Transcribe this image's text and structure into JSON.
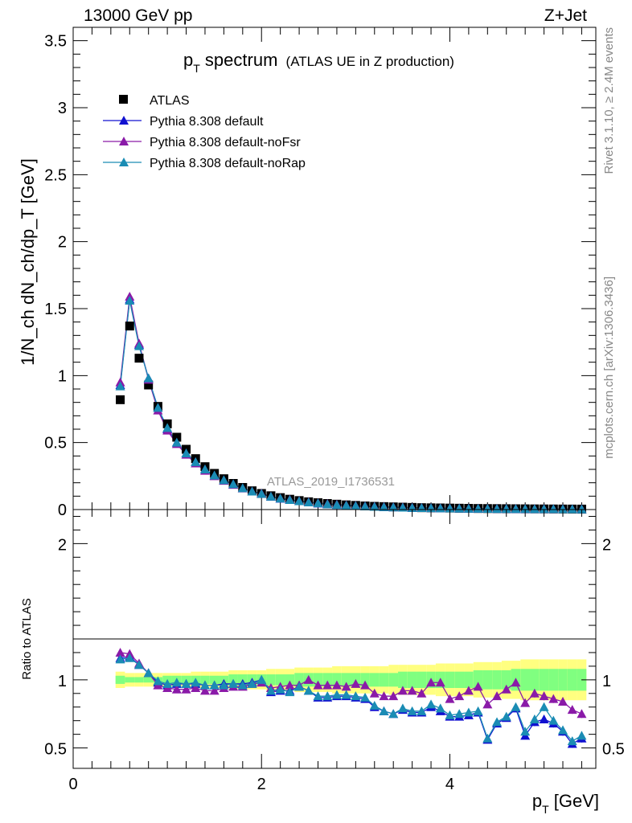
{
  "header": {
    "left": "13000 GeV pp",
    "right": "Z+Jet"
  },
  "side_labels": {
    "rivet": "Rivet 3.1.10, ≥ 2.4M events",
    "mcplots": "mcplots.cern.ch [arXiv:1306.3436]"
  },
  "watermark": "ATLAS_2019_I1736531",
  "colors": {
    "atlas": "#000000",
    "default": "#1010d0",
    "noFsr": "#8a1aa8",
    "noRap": "#1a8cb4",
    "band_outer": "#ffff80",
    "band_inner": "#80ff80"
  },
  "chart_data": [
    {
      "type": "scatter",
      "panel": "main",
      "title_main": "p",
      "title_sub": "T",
      "title_tail": " spectrum",
      "title_note": "(ATLAS UE in Z production)",
      "ylabel": "1/N_ch dN_ch/dp_T [GeV]",
      "ylim": [
        0,
        3.6
      ],
      "xlim": [
        0,
        5.55
      ],
      "yticks": [
        "0",
        "0.5",
        "1",
        "1.5",
        "2",
        "2.5",
        "3",
        "3.5"
      ],
      "legend_position": "top-left",
      "x": [
        0.5,
        0.6,
        0.7,
        0.8,
        0.9,
        1.0,
        1.1,
        1.2,
        1.3,
        1.4,
        1.5,
        1.6,
        1.7,
        1.8,
        1.9,
        2.0,
        2.1,
        2.2,
        2.3,
        2.4,
        2.5,
        2.6,
        2.7,
        2.8,
        2.9,
        3.0,
        3.1,
        3.2,
        3.3,
        3.4,
        3.5,
        3.6,
        3.7,
        3.8,
        3.9,
        4.0,
        4.1,
        4.2,
        4.3,
        4.4,
        4.5,
        4.6,
        4.7,
        4.8,
        4.9,
        5.0,
        5.1,
        5.2,
        5.3,
        5.4
      ],
      "series": [
        {
          "name": "ATLAS",
          "marker": "square",
          "values": [
            0.82,
            1.37,
            1.13,
            0.93,
            0.77,
            0.64,
            0.54,
            0.45,
            0.38,
            0.32,
            0.27,
            0.23,
            0.195,
            0.165,
            0.14,
            0.12,
            0.103,
            0.089,
            0.077,
            0.067,
            0.058,
            0.051,
            0.045,
            0.04,
            0.035,
            0.031,
            0.027,
            0.024,
            0.022,
            0.02,
            0.018,
            0.016,
            0.014,
            0.013,
            0.012,
            0.011,
            0.01,
            0.009,
            0.008,
            0.0075,
            0.007,
            0.0065,
            0.006,
            0.0055,
            0.005,
            0.0047,
            0.0044,
            0.0041,
            0.0038,
            0.0035
          ]
        },
        {
          "name": "Pythia 8.308 default",
          "marker": "triangle",
          "values": [
            0.93,
            1.57,
            1.23,
            0.98,
            0.76,
            0.6,
            0.5,
            0.42,
            0.355,
            0.3,
            0.255,
            0.22,
            0.19,
            0.16,
            0.135,
            0.118,
            0.096,
            0.082,
            0.072,
            0.063,
            0.054,
            0.046,
            0.04,
            0.035,
            0.031,
            0.027,
            0.024,
            0.021,
            0.019,
            0.017,
            0.015,
            0.013,
            0.012,
            0.011,
            0.01,
            0.009,
            0.008,
            0.007,
            0.0065,
            0.006,
            0.0055,
            0.005,
            0.0048,
            0.0042,
            0.004,
            0.0036,
            0.0034,
            0.003,
            0.0028,
            0.0025
          ]
        },
        {
          "name": "Pythia 8.308 default-noFsr",
          "marker": "triangle",
          "values": [
            0.95,
            1.59,
            1.24,
            0.97,
            0.74,
            0.59,
            0.49,
            0.41,
            0.345,
            0.29,
            0.25,
            0.215,
            0.185,
            0.158,
            0.135,
            0.12,
            0.097,
            0.084,
            0.074,
            0.064,
            0.056,
            0.049,
            0.043,
            0.038,
            0.033,
            0.029,
            0.026,
            0.023,
            0.021,
            0.019,
            0.017,
            0.015,
            0.013,
            0.012,
            0.011,
            0.01,
            0.009,
            0.008,
            0.0072,
            0.0068,
            0.0064,
            0.0058,
            0.0055,
            0.0048,
            0.0045,
            0.0042,
            0.0038,
            0.0035,
            0.0032,
            0.0028
          ]
        },
        {
          "name": "Pythia 8.308 default-noRap",
          "marker": "triangle",
          "values": [
            0.92,
            1.56,
            1.22,
            0.98,
            0.76,
            0.61,
            0.5,
            0.42,
            0.355,
            0.3,
            0.255,
            0.22,
            0.19,
            0.16,
            0.135,
            0.118,
            0.097,
            0.083,
            0.072,
            0.063,
            0.054,
            0.047,
            0.04,
            0.035,
            0.031,
            0.027,
            0.024,
            0.021,
            0.019,
            0.017,
            0.015,
            0.013,
            0.012,
            0.011,
            0.01,
            0.009,
            0.008,
            0.007,
            0.0065,
            0.006,
            0.0055,
            0.005,
            0.0048,
            0.0042,
            0.004,
            0.0036,
            0.0034,
            0.003,
            0.0028,
            0.0025
          ]
        }
      ]
    },
    {
      "type": "line",
      "panel": "ratio",
      "ylabel": "Ratio to ATLAS",
      "xlabel_main": "p",
      "xlabel_sub": "T",
      "xlabel_tail": " [GeV]",
      "ylim": [
        0.35,
        2.25
      ],
      "xlim": [
        0,
        5.55
      ],
      "yticks": [
        {
          "v": 0.5,
          "label": "0.5"
        },
        {
          "v": 1,
          "label": "1"
        },
        {
          "v": 2,
          "label": "2"
        }
      ],
      "xticks": [
        {
          "v": 0,
          "label": "0"
        },
        {
          "v": 2,
          "label": "2"
        },
        {
          "v": 4,
          "label": "4"
        }
      ],
      "x": [
        0.5,
        0.6,
        0.7,
        0.8,
        0.9,
        1.0,
        1.1,
        1.2,
        1.3,
        1.4,
        1.5,
        1.6,
        1.7,
        1.8,
        1.9,
        2.0,
        2.1,
        2.2,
        2.3,
        2.4,
        2.5,
        2.6,
        2.7,
        2.8,
        2.9,
        3.0,
        3.1,
        3.2,
        3.3,
        3.4,
        3.5,
        3.6,
        3.7,
        3.8,
        3.9,
        4.0,
        4.1,
        4.2,
        4.3,
        4.4,
        4.5,
        4.6,
        4.7,
        4.8,
        4.9,
        5.0,
        5.1,
        5.2,
        5.3,
        5.4
      ],
      "band_inner": [
        0.03,
        0.02,
        0.02,
        0.02,
        0.02,
        0.03,
        0.03,
        0.03,
        0.03,
        0.03,
        0.03,
        0.03,
        0.04,
        0.04,
        0.04,
        0.04,
        0.04,
        0.04,
        0.04,
        0.05,
        0.05,
        0.05,
        0.05,
        0.05,
        0.05,
        0.05,
        0.05,
        0.05,
        0.05,
        0.05,
        0.06,
        0.06,
        0.06,
        0.06,
        0.06,
        0.06,
        0.06,
        0.06,
        0.07,
        0.07,
        0.07,
        0.07,
        0.08,
        0.08,
        0.08,
        0.08,
        0.08,
        0.08,
        0.08,
        0.08
      ],
      "band_outer": [
        0.06,
        0.05,
        0.05,
        0.05,
        0.05,
        0.05,
        0.05,
        0.05,
        0.06,
        0.06,
        0.06,
        0.06,
        0.07,
        0.07,
        0.07,
        0.07,
        0.08,
        0.08,
        0.08,
        0.09,
        0.09,
        0.09,
        0.09,
        0.1,
        0.1,
        0.1,
        0.1,
        0.1,
        0.1,
        0.11,
        0.11,
        0.11,
        0.11,
        0.11,
        0.12,
        0.12,
        0.12,
        0.12,
        0.13,
        0.13,
        0.13,
        0.14,
        0.14,
        0.15,
        0.15,
        0.15,
        0.15,
        0.15,
        0.15,
        0.15
      ],
      "series": [
        {
          "name": "Pythia 8.308 default",
          "values": [
            1.16,
            1.17,
            1.11,
            1.05,
            0.98,
            0.96,
            0.97,
            0.97,
            0.97,
            0.96,
            0.96,
            0.97,
            0.97,
            0.97,
            0.98,
            1.0,
            0.91,
            0.92,
            0.92,
            0.95,
            0.92,
            0.87,
            0.87,
            0.88,
            0.88,
            0.87,
            0.86,
            0.8,
            0.77,
            0.75,
            0.78,
            0.76,
            0.76,
            0.8,
            0.77,
            0.73,
            0.73,
            0.74,
            0.76,
            0.56,
            0.68,
            0.72,
            0.79,
            0.59,
            0.69,
            0.71,
            0.68,
            0.62,
            0.53,
            0.57
          ],
          "errors": [
            0.01,
            0.01,
            0.01,
            0.01,
            0.01,
            0.01,
            0.01,
            0.01,
            0.01,
            0.01,
            0.01,
            0.01,
            0.01,
            0.01,
            0.01,
            0.01,
            0.01,
            0.01,
            0.01,
            0.01,
            0.01,
            0.01,
            0.01,
            0.01,
            0.01,
            0.01,
            0.01,
            0.015,
            0.015,
            0.015,
            0.015,
            0.015,
            0.015,
            0.015,
            0.02,
            0.02,
            0.02,
            0.02,
            0.02,
            0.02,
            0.025,
            0.025,
            0.025,
            0.025,
            0.03,
            0.03,
            0.03,
            0.03,
            0.03,
            0.03
          ]
        },
        {
          "name": "Pythia 8.308 default-noFsr",
          "values": [
            1.2,
            1.19,
            1.12,
            1.05,
            0.96,
            0.94,
            0.93,
            0.93,
            0.94,
            0.92,
            0.92,
            0.94,
            0.95,
            0.95,
            0.97,
            0.98,
            0.94,
            0.95,
            0.96,
            0.96,
            1.0,
            0.96,
            0.96,
            0.96,
            0.95,
            0.97,
            0.96,
            0.9,
            0.88,
            0.88,
            0.92,
            0.92,
            0.9,
            0.98,
            0.98,
            0.86,
            0.88,
            0.92,
            0.95,
            0.82,
            0.88,
            0.93,
            0.98,
            0.83,
            0.9,
            0.88,
            0.86,
            0.84,
            0.78,
            0.75
          ],
          "errors": [
            0.01,
            0.01,
            0.01,
            0.01,
            0.01,
            0.01,
            0.01,
            0.01,
            0.01,
            0.01,
            0.01,
            0.01,
            0.01,
            0.01,
            0.01,
            0.01,
            0.01,
            0.01,
            0.01,
            0.01,
            0.01,
            0.01,
            0.01,
            0.01,
            0.01,
            0.01,
            0.01,
            0.015,
            0.015,
            0.015,
            0.015,
            0.015,
            0.015,
            0.015,
            0.02,
            0.02,
            0.02,
            0.02,
            0.02,
            0.02,
            0.025,
            0.025,
            0.025,
            0.025,
            0.03,
            0.03,
            0.03,
            0.03,
            0.03,
            0.03
          ]
        },
        {
          "name": "Pythia 8.308 default-noRap",
          "values": [
            1.15,
            1.16,
            1.11,
            1.05,
            0.99,
            0.97,
            0.98,
            0.97,
            0.98,
            0.96,
            0.96,
            0.96,
            0.97,
            0.96,
            0.97,
            1.0,
            0.92,
            0.93,
            0.91,
            0.95,
            0.92,
            0.88,
            0.88,
            0.89,
            0.89,
            0.88,
            0.87,
            0.81,
            0.77,
            0.75,
            0.79,
            0.77,
            0.77,
            0.82,
            0.79,
            0.74,
            0.75,
            0.76,
            0.77,
            0.57,
            0.69,
            0.73,
            0.8,
            0.62,
            0.71,
            0.8,
            0.7,
            0.63,
            0.55,
            0.59
          ],
          "errors": [
            0.01,
            0.01,
            0.01,
            0.01,
            0.01,
            0.01,
            0.01,
            0.01,
            0.01,
            0.01,
            0.01,
            0.01,
            0.01,
            0.01,
            0.01,
            0.01,
            0.01,
            0.01,
            0.01,
            0.01,
            0.01,
            0.01,
            0.01,
            0.01,
            0.01,
            0.01,
            0.01,
            0.015,
            0.015,
            0.015,
            0.015,
            0.015,
            0.015,
            0.015,
            0.02,
            0.02,
            0.02,
            0.02,
            0.02,
            0.02,
            0.025,
            0.025,
            0.025,
            0.025,
            0.03,
            0.03,
            0.03,
            0.03,
            0.03,
            0.03
          ]
        }
      ]
    }
  ]
}
